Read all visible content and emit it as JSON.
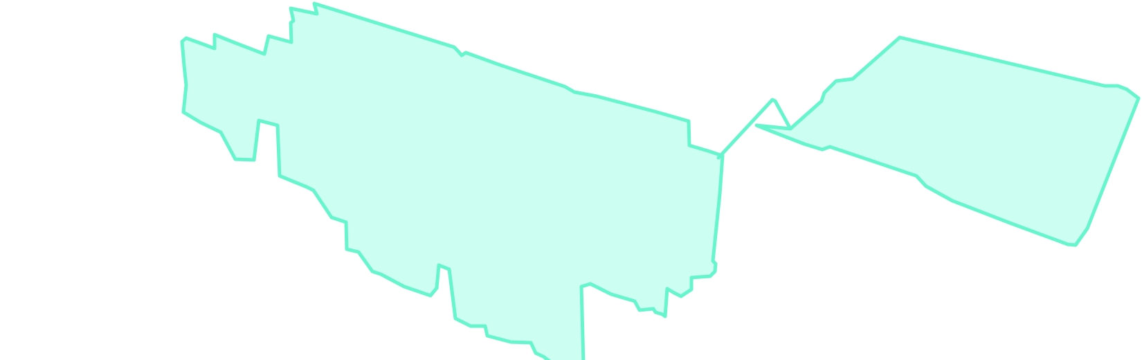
{
  "map": {
    "fill_color": "#ccfff2",
    "stroke_color": "#66f5cc",
    "regions": [
      "west-region",
      "east-region"
    ],
    "connector": "link-line"
  }
}
